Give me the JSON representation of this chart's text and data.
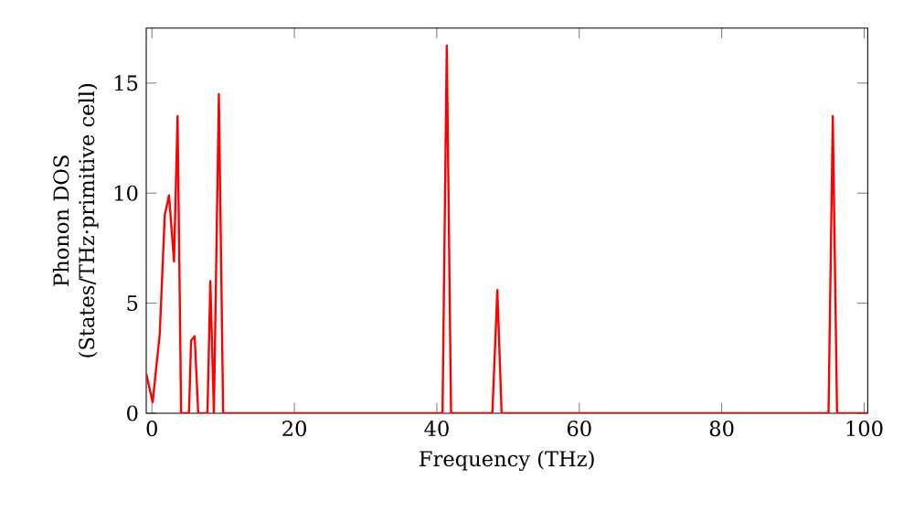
{
  "chart_data": {
    "type": "line",
    "xlabel": "Frequency (THz)",
    "ylabel": "Phonon DOS\n(States/THz·primitive cell)",
    "series": [
      {
        "color": "#ff0000",
        "x": [
          -0.8,
          0.1,
          1.1,
          1.8,
          2.4,
          3.1,
          3.6,
          4.1,
          5.2,
          5.5,
          6.0,
          6.5,
          7.8,
          8.2,
          8.7,
          9.4,
          10.0,
          40.8,
          41.4,
          42.0,
          47.8,
          48.5,
          49.1,
          95.0,
          95.6,
          96.2,
          100.5
        ],
        "values": [
          1.8,
          0.5,
          3.6,
          9.0,
          9.9,
          6.9,
          13.5,
          0,
          0,
          3.3,
          3.5,
          0,
          0,
          6.0,
          0,
          14.5,
          0,
          0,
          16.7,
          0,
          0,
          5.6,
          0,
          0,
          13.5,
          0,
          0
        ]
      }
    ],
    "xlim": [
      -0.8,
      100.5
    ],
    "ylim": [
      0,
      17.5
    ],
    "xticks": [
      0,
      20,
      40,
      60,
      80,
      100
    ],
    "yticks": [
      0,
      5,
      10,
      15
    ],
    "line_style": "solid",
    "marker": "none"
  }
}
